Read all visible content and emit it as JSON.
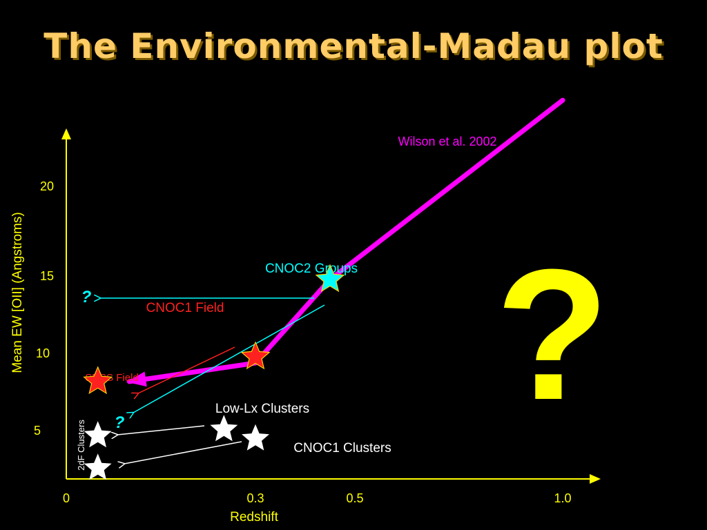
{
  "slide": {
    "title": "The Environmental-Madau plot",
    "big_question": "?"
  },
  "colors": {
    "axis": "#FFFF00",
    "madau_line": "#FF00FF",
    "field_star": "#FF2020",
    "groups_star": "#00FFFF",
    "cluster_star": "#FFFFFF",
    "label_red": "#FF2020",
    "label_cyan": "#00FFFF",
    "label_white": "#FFFFFF"
  },
  "chart_data": {
    "type": "scatter",
    "title": "",
    "xlabel": "Redshift",
    "ylabel": "Mean EW [OII] (Angstroms)",
    "x_ticks": [
      "0",
      "0.3",
      "0.5",
      "1.0"
    ],
    "y_ticks": [
      "5",
      "10",
      "15",
      "20"
    ],
    "grid": false,
    "series": [
      {
        "name": "Wilson et al. 2002",
        "style": "line",
        "color": "#FF00FF",
        "points": [
          [
            0.1,
            6.3
          ],
          [
            0.3,
            7.5
          ],
          [
            0.45,
            12.9
          ],
          [
            1.0,
            24.5
          ]
        ]
      },
      {
        "name": "SDSS Field",
        "style": "star",
        "color": "#FF2020",
        "points": [
          [
            0.05,
            6.3
          ]
        ]
      },
      {
        "name": "CNOC1 Field",
        "style": "star",
        "color": "#FF2020",
        "points": [
          [
            0.3,
            7.9
          ]
        ]
      },
      {
        "name": "CNOC2 Groups",
        "style": "star",
        "color": "#00FFFF",
        "points": [
          [
            0.45,
            12.9
          ]
        ]
      },
      {
        "name": "Low-Lx Clusters",
        "style": "star",
        "color": "#FFFFFF",
        "points": [
          [
            0.25,
            3.2
          ]
        ]
      },
      {
        "name": "CNOC1 Clusters",
        "style": "star",
        "color": "#FFFFFF",
        "points": [
          [
            0.3,
            2.6
          ]
        ]
      },
      {
        "name": "2dF Clusters",
        "style": "star",
        "color": "#FFFFFF",
        "points": [
          [
            0.05,
            2.8
          ],
          [
            0.05,
            0.7
          ]
        ]
      }
    ],
    "annotations": [
      {
        "text": "?",
        "color": "#00FFFF",
        "x": 0.03,
        "y": 12.5
      },
      {
        "text": "?",
        "color": "#00FFFF",
        "x": 0.06,
        "y": 4.3
      }
    ]
  }
}
